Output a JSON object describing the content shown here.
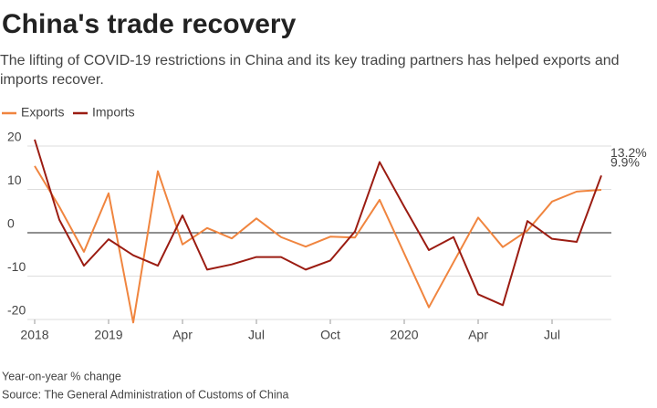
{
  "chart_data": {
    "type": "line",
    "title": "China's trade recovery",
    "subtitle": "The lifting of COVID-19 restrictions in China and its key trading partners has helped exports and imports recover.",
    "categories": [
      "2018",
      null,
      null,
      "2019",
      null,
      null,
      "Apr",
      null,
      null,
      "Jul",
      null,
      null,
      "Oct",
      null,
      null,
      "2020",
      null,
      null,
      "Apr",
      null,
      null,
      "Jul",
      null,
      null
    ],
    "series": [
      {
        "name": "Exports",
        "color": "#f0853f",
        "end_label": "9.9%",
        "values": [
          15.4,
          6,
          -4.4,
          9.1,
          -20.7,
          14.2,
          -2.7,
          1.1,
          -1.3,
          3.3,
          -1,
          -3.2,
          -0.9,
          -1.1,
          7.6,
          -4.8,
          -17.2,
          -6.8,
          3.5,
          -3.3,
          0.5,
          7.2,
          9.5,
          9.9
        ]
      },
      {
        "name": "Imports",
        "color": "#9b1c12",
        "end_label": "13.2%",
        "values": [
          21.5,
          3,
          -7.6,
          -1.5,
          -5.2,
          -7.6,
          4,
          -8.5,
          -7.3,
          -5.6,
          -5.6,
          -8.5,
          -6.4,
          0.3,
          16.3,
          6,
          -4,
          -1,
          -14.2,
          -16.7,
          2.7,
          -1.4,
          -2.1,
          13.2
        ]
      }
    ],
    "ylim": [
      -20,
      20
    ],
    "yticks": [
      -20,
      -10,
      0,
      10,
      20
    ],
    "grid": true,
    "notes": [
      "Year-on-year % change",
      "Source: The General Administration of Customs of China"
    ]
  }
}
